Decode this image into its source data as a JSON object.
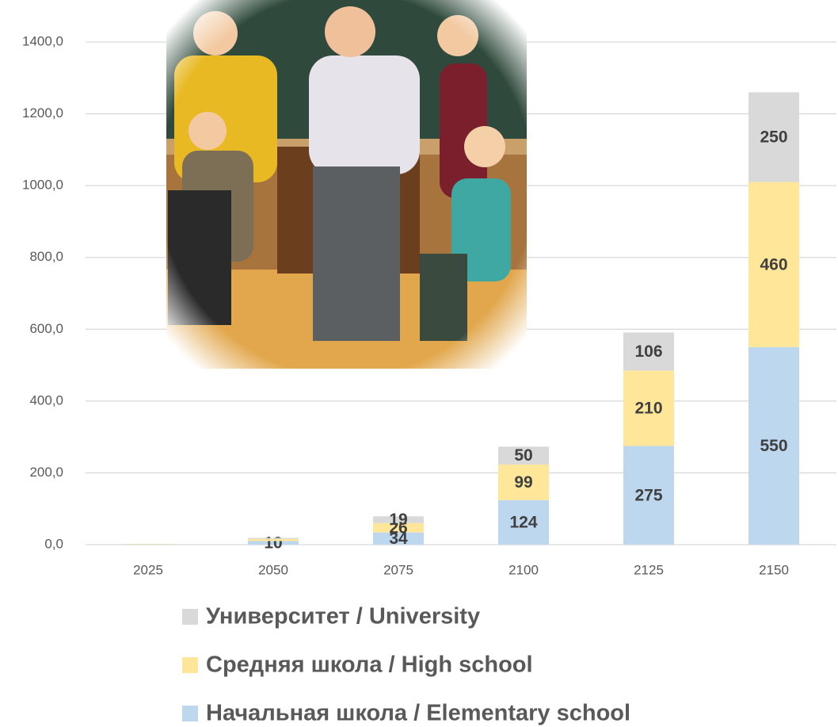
{
  "chart_data": {
    "type": "stacked-bar",
    "categories": [
      "2025",
      "2050",
      "2075",
      "2100",
      "2125",
      "2150"
    ],
    "series": [
      {
        "name": "Начальная школа / Elementary school",
        "color": "#bdd7ee",
        "values": [
          1,
          10,
          34,
          124,
          275,
          550
        ]
      },
      {
        "name": "Средняя школа / High school",
        "color": "#ffe699",
        "values": [
          1,
          6,
          26,
          99,
          210,
          460
        ]
      },
      {
        "name": "Университет / University",
        "color": "#d9d9d9",
        "values": [
          0,
          3,
          19,
          50,
          106,
          250
        ]
      }
    ],
    "ylim": [
      0,
      1400
    ],
    "yticks": [
      {
        "value": 0,
        "label": "0,0"
      },
      {
        "value": 200,
        "label": "200,0"
      },
      {
        "value": 400,
        "label": "400,0"
      },
      {
        "value": 600,
        "label": "600,0"
      },
      {
        "value": 800,
        "label": "800,0"
      },
      {
        "value": 1000,
        "label": "1000,0"
      },
      {
        "value": 1200,
        "label": "1200,0"
      },
      {
        "value": 1400,
        "label": "1400,0"
      }
    ],
    "grid": true
  }
}
